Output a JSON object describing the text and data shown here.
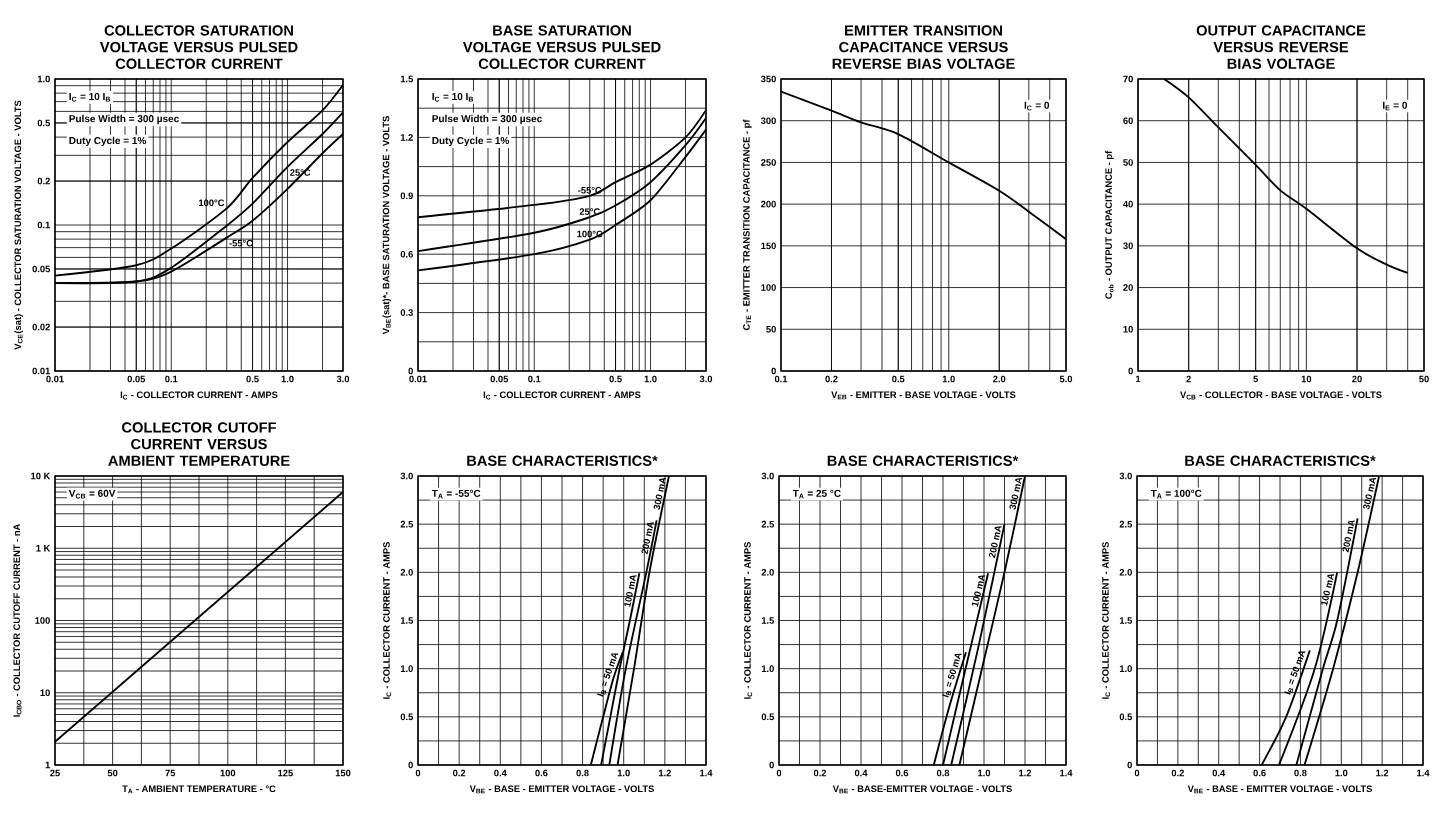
{
  "chart_data": [
    {
      "type": "line",
      "title": "COLLECTOR SATURATION VOLTAGE VERSUS PULSED COLLECTOR CURRENT",
      "xlabel": "I$_{C}$ - COLLECTOR CURRENT - AMPS",
      "ylabel": "V$_{CE}$(sat) - COLLECTOR SATURATION VOLTAGE - VOLTS",
      "log": "xy",
      "grid": true,
      "xlim": [
        0.01,
        3.0
      ],
      "ylim": [
        0.01,
        1.0
      ],
      "xticks": [
        0.01,
        0.05,
        0.1,
        0.5,
        {
          "value": 1.0,
          "label": "1.0"
        },
        {
          "value": 3.0,
          "label": "3.0"
        }
      ],
      "yticks": [
        0.01,
        0.02,
        0.05,
        0.1,
        0.2,
        0.5,
        {
          "value": 1.0,
          "label": "1.0"
        }
      ],
      "annotations": [
        "I$_{C}$ = 10 I$_{B}$",
        "Pulse Width = 300 µsec",
        "Duty Cycle = 1%"
      ],
      "series": [
        {
          "name": "100°C",
          "color": "#000000",
          "x": [
            0.01,
            0.05,
            0.1,
            0.3,
            0.5,
            1.0,
            2.0,
            3.0
          ],
          "values": [
            0.045,
            0.053,
            0.069,
            0.13,
            0.21,
            0.37,
            0.61,
            0.91
          ]
        },
        {
          "name": "25°C",
          "color": "#000000",
          "x": [
            0.01,
            0.05,
            0.1,
            0.3,
            0.5,
            1.0,
            2.0,
            3.0
          ],
          "values": [
            0.04,
            0.041,
            0.051,
            0.099,
            0.14,
            0.25,
            0.42,
            0.59
          ]
        },
        {
          "name": "-55°C",
          "color": "#000000",
          "x": [
            0.01,
            0.05,
            0.1,
            0.3,
            0.5,
            1.0,
            2.0,
            3.0
          ],
          "values": [
            0.04,
            0.041,
            0.048,
            0.082,
            0.107,
            0.177,
            0.31,
            0.42
          ]
        }
      ]
    },
    {
      "type": "line",
      "title": "BASE SATURATION VOLTAGE VERSUS PULSED COLLECTOR CURRENT",
      "xlabel": "I$_{C}$ - COLLECTOR CURRENT - AMPS",
      "ylabel": "V$_{BE}$(sat)*- BASE SATURATION VOLTAGE - VOLTS",
      "log": "x",
      "grid": true,
      "xlim": [
        0.01,
        3.0
      ],
      "ylim": [
        0,
        1.5
      ],
      "xticks": [
        0.01,
        0.05,
        0.1,
        0.5,
        {
          "value": 1.0,
          "label": "1.0"
        },
        {
          "value": 3.0,
          "label": "3.0"
        }
      ],
      "yticks": [
        0,
        0.3,
        0.6,
        0.9,
        1.2,
        1.5
      ],
      "annotations": [
        "I$_{C}$ = 10 I$_{B}$",
        "Pulse Width = 300 µsec",
        "Duty Cycle = 1%"
      ],
      "series": [
        {
          "name": "-55°C",
          "color": "#000000",
          "x": [
            0.01,
            0.1,
            0.3,
            0.5,
            1.0,
            2.0,
            3.0
          ],
          "values": [
            0.79,
            0.853,
            0.9,
            0.97,
            1.06,
            1.2,
            1.34
          ]
        },
        {
          "name": "25°C",
          "color": "#000000",
          "x": [
            0.01,
            0.1,
            0.3,
            0.5,
            1.0,
            2.0,
            3.0
          ],
          "values": [
            0.616,
            0.71,
            0.79,
            0.85,
            0.97,
            1.16,
            1.3
          ]
        },
        {
          "name": "100°C",
          "color": "#000000",
          "x": [
            0.01,
            0.1,
            0.3,
            0.5,
            1.0,
            2.0,
            3.0
          ],
          "values": [
            0.517,
            0.6,
            0.675,
            0.75,
            0.877,
            1.1,
            1.24
          ]
        }
      ]
    },
    {
      "type": "line",
      "title": "EMITTER TRANSITION CAPACITANCE VERSUS REVERSE BIAS VOLTAGE",
      "xlabel": "V$_{EB}$ - EMITTER - BASE VOLTAGE - VOLTS",
      "ylabel": "C$_{TE}$ - EMITTER TRANSITION CAPACITANCE - pf",
      "log": "x",
      "grid": true,
      "xlim": [
        0.1,
        5.0
      ],
      "ylim": [
        0,
        350
      ],
      "xticks": [
        0.1,
        0.2,
        0.5,
        {
          "value": 1.0,
          "label": "1.0"
        },
        {
          "value": 2.0,
          "label": "2.0"
        },
        {
          "value": 5.0,
          "label": "5.0"
        }
      ],
      "yticks": [
        0,
        50,
        100,
        150,
        200,
        250,
        300,
        350
      ],
      "annotations": [
        "I$_{C}$ = 0"
      ],
      "series": [
        {
          "color": "#000000",
          "x": [
            0.1,
            0.2,
            0.3,
            0.5,
            1.0,
            2.0,
            3.0,
            5.0
          ],
          "values": [
            335,
            312,
            298,
            284,
            250,
            216,
            191,
            158
          ]
        }
      ]
    },
    {
      "type": "line",
      "title": "OUTPUT CAPACITANCE VERSUS REVERSE BIAS VOLTAGE",
      "xlabel": "V$_{CB}$ - COLLECTOR - BASE VOLTAGE - VOLTS",
      "ylabel": "C$_{ob}$ - OUTPUT CAPACITANCE - pf",
      "log": "x",
      "grid": true,
      "xlim": [
        1,
        50
      ],
      "ylim": [
        0,
        70
      ],
      "xticks": [
        1,
        2,
        5,
        10,
        20,
        50
      ],
      "yticks": [
        0,
        10,
        20,
        30,
        40,
        50,
        60,
        70
      ],
      "annotations": [
        "I$_{E}$ = 0"
      ],
      "series": [
        {
          "color": "#000000",
          "x": [
            1.43,
            2,
            3,
            5,
            7,
            10,
            20,
            30,
            40
          ],
          "values": [
            70,
            65.6,
            58.4,
            49.4,
            43.3,
            38.9,
            29.4,
            25.5,
            23.5
          ]
        }
      ]
    },
    {
      "type": "line",
      "title": "COLLECTOR CUTOFF CURRENT VERSUS AMBIENT TEMPERATURE",
      "xlabel": "T$_{A}$ - AMBIENT TEMPERATURE - °C",
      "ylabel": "I$_{CBO}$ - COLLECTOR CUTOFF CURRENT - nA",
      "log": "y",
      "grid": true,
      "xlim": [
        25,
        150
      ],
      "ylim": [
        1,
        10000
      ],
      "xticks": [
        25,
        50,
        75,
        100,
        125,
        150
      ],
      "yticks": [
        1,
        10,
        100,
        {
          "value": 1000,
          "label": "1 K"
        },
        {
          "value": 10000,
          "label": "10 K"
        }
      ],
      "annotations": [
        "V$_{CB}$ = 60V"
      ],
      "series": [
        {
          "color": "#000000",
          "x": [
            25,
            150
          ],
          "values": [
            2.1,
            6000
          ]
        }
      ]
    },
    {
      "type": "line",
      "title": "BASE CHARACTERISTICS*",
      "xlabel": "V$_{BE}$ - BASE - EMITTER VOLTAGE - VOLTS",
      "ylabel": "I$_{C}$ - COLLECTOR CURRENT - AMPS",
      "grid": true,
      "xlim": [
        0,
        1.4
      ],
      "ylim": [
        0,
        3.0
      ],
      "xticks": [
        0,
        0.2,
        0.4,
        0.6,
        0.8,
        {
          "value": 1.0,
          "label": "1.0"
        },
        1.2,
        1.4
      ],
      "yticks": [
        0,
        0.5,
        {
          "value": 1.0,
          "label": "1.0"
        },
        1.5,
        {
          "value": 2.0,
          "label": "2.0"
        },
        2.5,
        {
          "value": 3.0,
          "label": "3.0"
        }
      ],
      "annotations": [
        "T$_{A}$ = -55°C"
      ],
      "series": [
        {
          "name": "I$_{B}$ = 50 mA",
          "color": "#000000",
          "x": [
            0.84,
            0.9,
            0.95,
            0.995
          ],
          "values": [
            0,
            0.5,
            0.9,
            1.17
          ]
        },
        {
          "name": "100 mA",
          "color": "#000000",
          "x": [
            0.89,
            0.935,
            0.98,
            1.03,
            1.076
          ],
          "values": [
            0,
            0.5,
            1.0,
            1.5,
            1.99
          ]
        },
        {
          "name": "200 mA",
          "color": "#000000",
          "x": [
            0.93,
            1.01,
            1.11,
            1.16
          ],
          "values": [
            0,
            1.0,
            2.0,
            2.54
          ]
        },
        {
          "name": "300 mA",
          "color": "#000000",
          "x": [
            0.97,
            1.05,
            1.125,
            1.22
          ],
          "values": [
            0,
            1.0,
            2.0,
            3.0
          ]
        }
      ]
    },
    {
      "type": "line",
      "title": "BASE CHARACTERISTICS*",
      "xlabel": "V$_{BE}$ - BASE-EMITTER VOLTAGE - VOLTS",
      "ylabel": "I$_{C}$ - COLLECTOR CURRENT - AMPS",
      "grid": true,
      "xlim": [
        0,
        1.4
      ],
      "ylim": [
        0,
        3.0
      ],
      "xticks": [
        0,
        0.2,
        0.4,
        0.6,
        0.8,
        {
          "value": 1.0,
          "label": "1.0"
        },
        1.2,
        1.4
      ],
      "yticks": [
        0,
        0.5,
        {
          "value": 1.0,
          "label": "1.0"
        },
        1.5,
        {
          "value": 2.0,
          "label": "2.0"
        },
        2.5,
        {
          "value": 3.0,
          "label": "3.0"
        }
      ],
      "annotations": [
        "T$_{A}$ = 25 °C"
      ],
      "series": [
        {
          "name": "I$_{B}$ = 50 mA",
          "color": "#000000",
          "x": [
            0.755,
            0.83,
            0.912
          ],
          "values": [
            0,
            0.6,
            1.17
          ]
        },
        {
          "name": "100 mA",
          "color": "#000000",
          "x": [
            0.8,
            0.91,
            1.02
          ],
          "values": [
            0,
            1.0,
            1.99
          ]
        },
        {
          "name": "200 mA",
          "color": "#000000",
          "x": [
            0.84,
            0.97,
            1.1
          ],
          "values": [
            0,
            1.2,
            2.5
          ]
        },
        {
          "name": "300 mA",
          "color": "#000000",
          "x": [
            0.88,
            0.99,
            1.1,
            1.2
          ],
          "values": [
            0,
            1.0,
            2.0,
            3.0
          ]
        }
      ]
    },
    {
      "type": "line",
      "title": "BASE CHARACTERISTICS*",
      "xlabel": "V$_{BE}$ - BASE - EMITTER VOLTAGE - VOLTS",
      "ylabel": "I$_{C}$ - COLLECTOR CURRENT - AMPS",
      "grid": true,
      "xlim": [
        0,
        1.4
      ],
      "ylim": [
        0,
        3.0
      ],
      "xticks": [
        0,
        0.2,
        0.4,
        0.6,
        0.8,
        {
          "value": 1.0,
          "label": "1.0"
        },
        1.2,
        1.4
      ],
      "yticks": [
        0,
        0.5,
        {
          "value": 1.0,
          "label": "1.0"
        },
        1.5,
        {
          "value": 2.0,
          "label": "2.0"
        },
        2.5,
        {
          "value": 3.0,
          "label": "3.0"
        }
      ],
      "annotations": [
        "T$_{A}$ = 100°C"
      ],
      "series": [
        {
          "name": "I$_{B}$ = 50 mA",
          "color": "#000000",
          "x": [
            0.61,
            0.73,
            0.846
          ],
          "values": [
            0,
            0.5,
            1.19
          ]
        },
        {
          "name": "100 mA",
          "color": "#000000",
          "x": [
            0.695,
            0.87,
            0.98
          ],
          "values": [
            0,
            1.0,
            2.0
          ]
        },
        {
          "name": "200 mA",
          "color": "#000000",
          "x": [
            0.78,
            0.91,
            0.98,
            1.08
          ],
          "values": [
            0,
            1.0,
            1.5,
            2.56
          ]
        },
        {
          "name": "300 mA",
          "color": "#000000",
          "x": [
            0.82,
            0.96,
            1.08,
            1.185
          ],
          "values": [
            0,
            1.0,
            2.0,
            3.0
          ]
        }
      ]
    }
  ]
}
